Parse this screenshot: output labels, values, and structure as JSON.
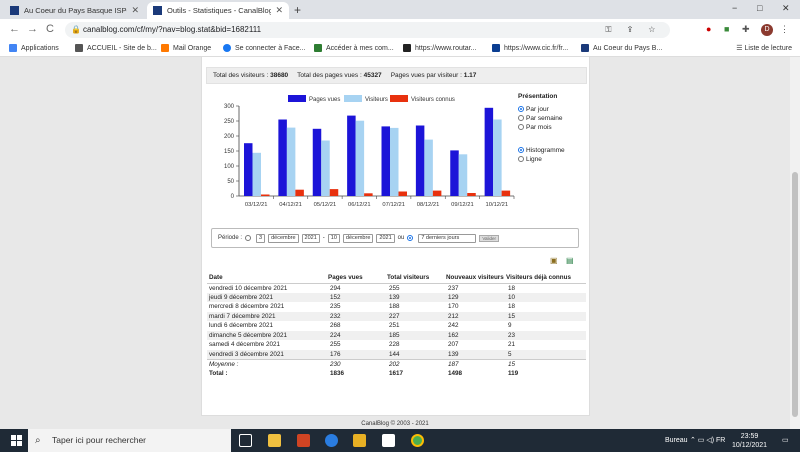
{
  "browser": {
    "tabs": [
      {
        "title": "Au Coeur du Pays Basque ISPOU"
      },
      {
        "title": "Outils - Statistiques - CanalBlog"
      }
    ],
    "new_tab": "+",
    "window_controls": [
      "−",
      "□",
      "✕"
    ],
    "nav": {
      "back": "←",
      "forward": "→",
      "reload": "C"
    },
    "url": "canalblog.com/cf/my/?nav=blog.stat&bid=1682111",
    "lock": "🔒",
    "omni_tools": "⚿ ⇪ ☆",
    "avatar_letter": "D",
    "bookmarks": [
      {
        "label": "Applications",
        "color": "#4285f4"
      },
      {
        "label": "ACCUEIL - Site de b...",
        "color": "#555555"
      },
      {
        "label": "Mail Orange",
        "color": "#ff7900"
      },
      {
        "label": "Se connecter à Face...",
        "color": "#1877f2"
      },
      {
        "label": "Accéder à mes com...",
        "color": "#2e7d32"
      },
      {
        "label": "https://www.routar...",
        "color": "#222222"
      },
      {
        "label": "https://www.cic.fr/fr...",
        "color": "#0a3d91"
      },
      {
        "label": "Au Coeur du Pays B...",
        "color": "#1b3a7a"
      }
    ],
    "reading_list": "Liste de lecture"
  },
  "summary": {
    "total_visitors_label": "Total des visiteurs :",
    "total_visitors": "38680",
    "total_pages_label": "Total des pages vues :",
    "total_pages": "45327",
    "pages_per_visitor_label": "Pages vues par visiteur :",
    "pages_per_visitor": "1.17"
  },
  "chart_data": {
    "type": "bar",
    "categories": [
      "03/12/21",
      "04/12/21",
      "05/12/21",
      "06/12/21",
      "07/12/21",
      "08/12/21",
      "09/12/21",
      "10/12/21"
    ],
    "series": [
      {
        "name": "Pages vues",
        "color": "#1c14d8",
        "values": [
          176,
          255,
          224,
          268,
          232,
          235,
          152,
          294
        ]
      },
      {
        "name": "Visiteurs",
        "color": "#a7d3f2",
        "values": [
          144,
          228,
          185,
          251,
          227,
          188,
          139,
          255
        ]
      },
      {
        "name": "Visiteurs connus",
        "color": "#e8310e",
        "values": [
          5,
          21,
          23,
          9,
          15,
          18,
          10,
          18
        ]
      }
    ],
    "ylim": [
      0,
      300
    ],
    "yticks": [
      0,
      50,
      100,
      150,
      200,
      250,
      300
    ],
    "legend": "top-center",
    "grid": false
  },
  "presentation": {
    "title": "Présentation",
    "period_options": [
      {
        "label": "Par jour",
        "checked": true
      },
      {
        "label": "Par semaine",
        "checked": false
      },
      {
        "label": "Par mois",
        "checked": false
      }
    ],
    "type_options": [
      {
        "label": "Histogramme",
        "checked": true
      },
      {
        "label": "Ligne",
        "checked": false
      }
    ]
  },
  "period": {
    "label": "Période :",
    "from_day": "3",
    "from_month": "décembre",
    "from_year": "2021",
    "sep": "-",
    "to_day": "10",
    "to_month": "décembre",
    "to_year": "2021",
    "or": "ou",
    "preset": "7 derniers jours",
    "validate": "Valider"
  },
  "table": {
    "headers": [
      "Date",
      "Pages vues",
      "Total visiteurs",
      "Nouveaux visiteurs",
      "Visiteurs déjà connus"
    ],
    "rows": [
      [
        "vendredi 10 décembre 2021",
        "294",
        "255",
        "237",
        "18"
      ],
      [
        "jeudi 9 décembre 2021",
        "152",
        "139",
        "129",
        "10"
      ],
      [
        "mercredi 8 décembre 2021",
        "235",
        "188",
        "170",
        "18"
      ],
      [
        "mardi 7 décembre 2021",
        "232",
        "227",
        "212",
        "15"
      ],
      [
        "lundi 6 décembre 2021",
        "268",
        "251",
        "242",
        "9"
      ],
      [
        "dimanche 5 décembre 2021",
        "224",
        "185",
        "162",
        "23"
      ],
      [
        "samedi 4 décembre 2021",
        "255",
        "228",
        "207",
        "21"
      ],
      [
        "vendredi 3 décembre 2021",
        "176",
        "144",
        "139",
        "5"
      ]
    ],
    "average": [
      "Moyenne :",
      "230",
      "202",
      "187",
      "15"
    ],
    "total": [
      "Total :",
      "1836",
      "1617",
      "1498",
      "119"
    ]
  },
  "footer": "CanalBlog © 2003 - 2021",
  "taskbar": {
    "search_placeholder": "Taper ici pour rechercher",
    "desktop_label": "Bureau",
    "tray_symbols": "⌃ ▭ ◁) FR",
    "time": "23:59",
    "date": "10/12/2021"
  }
}
